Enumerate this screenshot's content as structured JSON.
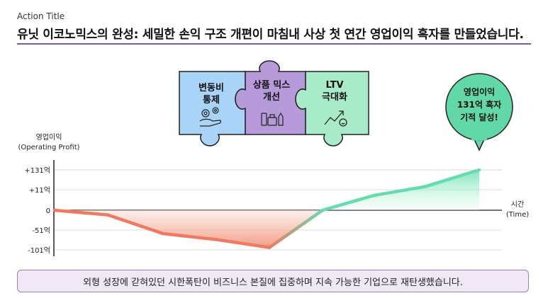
{
  "header": {
    "label": "Action Title",
    "headline": "유닛 이코노믹스의 완성: 세밀한 손익 구조 개편이 마침내 사상 첫 연간 영업이익 흑자를 만들었습니다."
  },
  "puzzle": [
    {
      "line1": "변동비",
      "line2": "통제",
      "icon": "hand-gears-icon",
      "color": "#a9d4f7"
    },
    {
      "line1": "상품 믹스",
      "line2": "개선",
      "icon": "products-icon",
      "color": "#b79ad9"
    },
    {
      "line1": "LTV",
      "line2": "극대화",
      "icon": "growth-arrow-icon",
      "color": "#a8ebc9"
    }
  ],
  "callout": {
    "line1": "영업이익",
    "line2": "131억 흑자",
    "line3": "기적 달성!"
  },
  "chart_data": {
    "type": "line",
    "ylabel": "영업이익",
    "ylabel_en": "(Operating Profit)",
    "xlabel": "시간",
    "xlabel_en": "(Time)",
    "y_ticks": [
      {
        "label": "+131억",
        "value": 131
      },
      {
        "label": "+11억",
        "value": 11
      },
      {
        "label": "0",
        "value": 0
      },
      {
        "label": "-51억",
        "value": -51
      },
      {
        "label": "-101억",
        "value": -101
      }
    ],
    "x": [
      0,
      1,
      2,
      3,
      4,
      5,
      6,
      7,
      8
    ],
    "values": [
      0,
      -12,
      -60,
      -75,
      -95,
      0,
      8,
      30,
      131
    ]
  },
  "footer": {
    "text": "외형 성장에 갇혀있던 시한폭탄이 비즈니스 본질에 집중하며 지속 가능한 기업으로 재탄생했습니다."
  }
}
